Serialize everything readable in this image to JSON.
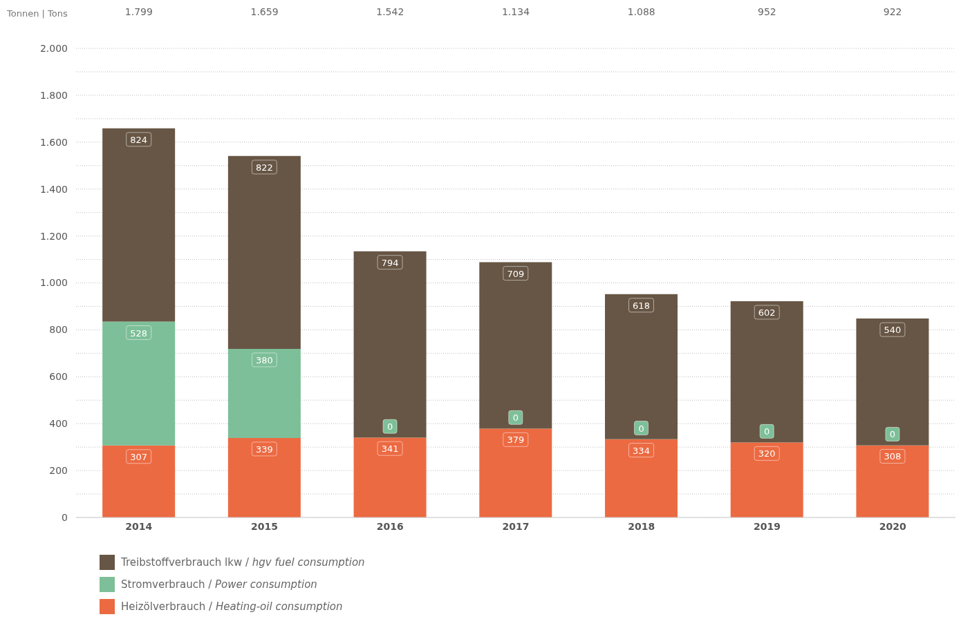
{
  "chart_data": {
    "type": "bar",
    "stacked": true,
    "ylabel": "Tonnen | Tons",
    "categories": [
      "2014",
      "2015",
      "2016",
      "2017",
      "2018",
      "2019",
      "2020"
    ],
    "series": [
      {
        "name": "Heizölverbrauch / Heating-oil consumption",
        "color": "#ec6a42",
        "values": [
          307,
          339,
          341,
          379,
          334,
          320,
          308
        ]
      },
      {
        "name": "Stromverbrauch / Power consumption",
        "color": "#7dbf98",
        "values": [
          528,
          380,
          0,
          0,
          0,
          0,
          0
        ]
      },
      {
        "name": "Treibstoffverbrauch lkw / hgv fuel consumption",
        "color": "#675645",
        "values": [
          824,
          822,
          794,
          709,
          618,
          602,
          540
        ]
      }
    ],
    "annotations": [
      "1.799",
      "1.659",
      "1.542",
      "1.134",
      "1.088",
      "952",
      "922"
    ],
    "ylim": [
      0,
      2000
    ],
    "yticks": [
      {
        "value": 0,
        "label": "0"
      },
      {
        "value": 100,
        "label": null
      },
      {
        "value": 200,
        "label": "200"
      },
      {
        "value": 300,
        "label": null
      },
      {
        "value": 400,
        "label": "400"
      },
      {
        "value": 500,
        "label": null
      },
      {
        "value": 600,
        "label": "600"
      },
      {
        "value": 700,
        "label": null
      },
      {
        "value": 800,
        "label": "800"
      },
      {
        "value": 900,
        "label": null
      },
      {
        "value": 1000,
        "label": "1.000"
      },
      {
        "value": 1100,
        "label": null
      },
      {
        "value": 1200,
        "label": "1.200"
      },
      {
        "value": 1300,
        "label": null
      },
      {
        "value": 1400,
        "label": "1.400"
      },
      {
        "value": 1500,
        "label": null
      },
      {
        "value": 1600,
        "label": "1.600"
      },
      {
        "value": 1700,
        "label": null
      },
      {
        "value": 1800,
        "label": "1.800"
      },
      {
        "value": 1900,
        "label": null
      },
      {
        "value": 2000,
        "label": "2.000"
      }
    ],
    "grid": "y",
    "legend": "bottom left",
    "data_labels": true
  }
}
